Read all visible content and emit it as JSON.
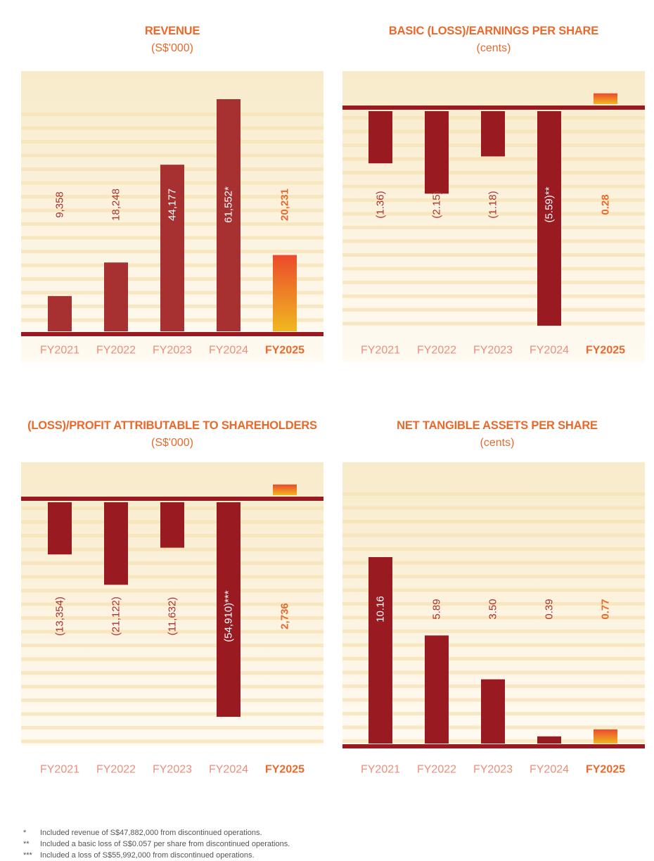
{
  "colors": {
    "title": "#e8692c",
    "subtitle": "#e8692c",
    "bar_dark": "#991a20",
    "bar_revenue": "#a73131",
    "highlight_top": "#ec4a2c",
    "highlight_bottom": "#f0b820",
    "axis_line": "#991a20",
    "tick_label": "#ec8e7a",
    "tick_label_highlight": "#e8692c",
    "label_dark": "#a73131",
    "bg_top": "#f8ebcb",
    "bg_bottom": "#fffaf2",
    "stripe": "#f6e1b4"
  },
  "chart_data": [
    {
      "type": "bar",
      "title": "REVENUE",
      "subtitle": "(S$'000)",
      "categories": [
        "FY2021",
        "FY2022",
        "FY2023",
        "FY2024",
        "FY2025"
      ],
      "values": [
        9358,
        18248,
        44177,
        61552,
        20231
      ],
      "value_labels": [
        "9,358",
        "18,248",
        "44,177",
        "61,552*",
        "20,231"
      ],
      "highlight_category": "FY2025",
      "ylim": [
        0,
        65000
      ]
    },
    {
      "type": "bar",
      "title": "BASIC (LOSS)/EARNINGS PER SHARE",
      "subtitle": "(cents)",
      "categories": [
        "FY2021",
        "FY2022",
        "FY2023",
        "FY2024",
        "FY2025"
      ],
      "values": [
        -1.36,
        -2.15,
        -1.18,
        -5.59,
        0.28
      ],
      "value_labels": [
        "(1.36)",
        "(2.15)",
        "(1.18)",
        "(5.59)**",
        "0.28"
      ],
      "highlight_category": "FY2025",
      "ylim": [
        -5.7,
        0.6
      ]
    },
    {
      "type": "bar",
      "title": "(LOSS)/PROFIT ATTRIBUTABLE TO SHAREHOLDERS",
      "subtitle": "(S$'000)",
      "categories": [
        "FY2021",
        "FY2022",
        "FY2023",
        "FY2024",
        "FY2025"
      ],
      "values": [
        -13354,
        -21122,
        -11632,
        -54910,
        2736
      ],
      "value_labels": [
        "(13,354)",
        "(21,122)",
        "(11,632)",
        "(54,910)***",
        "2,736"
      ],
      "highlight_category": "FY2025",
      "ylim": [
        -58000,
        9000
      ]
    },
    {
      "type": "bar",
      "title": "NET TANGIBLE ASSETS PER SHARE",
      "subtitle": "(cents)",
      "categories": [
        "FY2021",
        "FY2022",
        "FY2023",
        "FY2024",
        "FY2025"
      ],
      "values": [
        10.16,
        5.89,
        3.5,
        0.39,
        0.77
      ],
      "value_labels": [
        "10.16",
        "5.89",
        "3.50",
        "0.39",
        "0.77"
      ],
      "highlight_category": "FY2025",
      "ylim": [
        0,
        15
      ]
    }
  ],
  "footnotes": [
    {
      "mark": "*",
      "text": "Included revenue of S$47,882,000 from discontinued operations."
    },
    {
      "mark": "**",
      "text": "Included a basic loss of S$0.057 per share from discontinued operations."
    },
    {
      "mark": "***",
      "text": "Included a loss of S$55,992,000 from discontinued operations."
    }
  ]
}
